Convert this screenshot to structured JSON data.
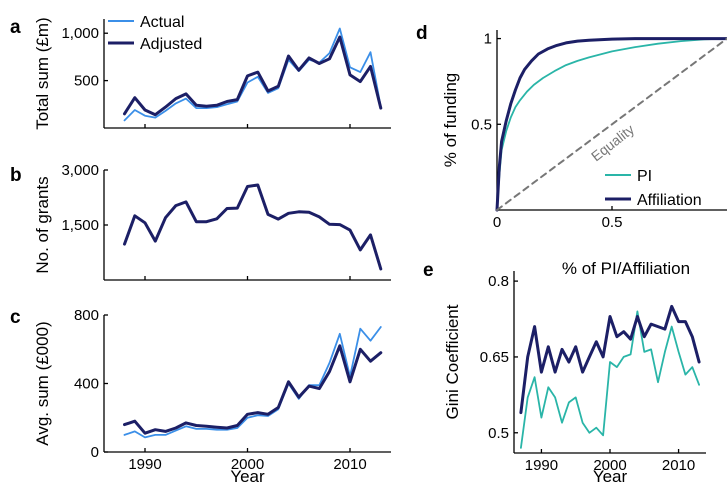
{
  "colors": {
    "actual": "#3b8fe8",
    "adjusted": "#1c1f66",
    "pi": "#2ab5a8",
    "affiliation": "#1c1f66",
    "equality": "#777777"
  },
  "panel_labels": {
    "a": "a",
    "b": "b",
    "c": "c",
    "d": "d",
    "e": "e"
  },
  "chart_data": [
    {
      "panel": "a",
      "type": "line",
      "xlabel": "",
      "ylabel": "Total sum (£m)",
      "xlim": [
        1986,
        2014
      ],
      "ylim": [
        0,
        1150
      ],
      "yticks": [
        500,
        1000
      ],
      "ytick_labels": [
        "500",
        "1,000"
      ],
      "legend": {
        "position": "top-left",
        "entries": [
          "Actual",
          "Adjusted"
        ]
      },
      "x": [
        1988,
        1989,
        1990,
        1991,
        1992,
        1993,
        1994,
        1995,
        1996,
        1997,
        1998,
        1999,
        2000,
        2001,
        2002,
        2003,
        2004,
        2005,
        2006,
        2007,
        2008,
        2009,
        2010,
        2011,
        2012,
        2013
      ],
      "series": [
        {
          "name": "Actual",
          "color_key": "actual",
          "values": [
            80,
            190,
            130,
            110,
            180,
            260,
            310,
            210,
            210,
            220,
            250,
            280,
            480,
            540,
            370,
            420,
            720,
            600,
            720,
            690,
            790,
            1050,
            640,
            590,
            800,
            220
          ]
        },
        {
          "name": "Adjusted",
          "color_key": "adjusted",
          "values": [
            150,
            320,
            190,
            140,
            220,
            310,
            360,
            240,
            230,
            240,
            280,
            300,
            550,
            590,
            390,
            440,
            760,
            610,
            740,
            680,
            730,
            960,
            560,
            490,
            650,
            210
          ]
        }
      ]
    },
    {
      "panel": "b",
      "type": "line",
      "xlabel": "",
      "ylabel": "No. of grants",
      "xlim": [
        1986,
        2014
      ],
      "ylim": [
        0,
        3000
      ],
      "yticks": [
        1500,
        3000
      ],
      "ytick_labels": [
        "1,500",
        "3,000"
      ],
      "x": [
        1988,
        1989,
        1990,
        1991,
        1992,
        1993,
        1994,
        1995,
        1996,
        1997,
        1998,
        1999,
        2000,
        2001,
        2002,
        2003,
        2004,
        2005,
        2006,
        2007,
        2008,
        2009,
        2010,
        2011,
        2012,
        2013
      ],
      "series": [
        {
          "color_key": "adjusted",
          "values": [
            980,
            1750,
            1560,
            1060,
            1700,
            2030,
            2130,
            1590,
            1590,
            1670,
            1950,
            1960,
            2550,
            2590,
            1790,
            1660,
            1820,
            1860,
            1850,
            1720,
            1520,
            1510,
            1360,
            820,
            1230,
            300
          ]
        }
      ]
    },
    {
      "panel": "c",
      "type": "line",
      "xlabel": "Year",
      "ylabel": "Avg. sum (£000)",
      "xlim": [
        1986,
        2014
      ],
      "ylim": [
        0,
        800
      ],
      "yticks": [
        0,
        400,
        800
      ],
      "ytick_labels": [
        "0",
        "400",
        "800"
      ],
      "xticks": [
        1990,
        2000,
        2010
      ],
      "xtick_labels": [
        "1990",
        "2000",
        "2010"
      ],
      "x": [
        1988,
        1989,
        1990,
        1991,
        1992,
        1993,
        1994,
        1995,
        1996,
        1997,
        1998,
        1999,
        2000,
        2001,
        2002,
        2003,
        2004,
        2005,
        2006,
        2007,
        2008,
        2009,
        2010,
        2011,
        2012,
        2013
      ],
      "series": [
        {
          "name": "Actual",
          "color_key": "actual",
          "values": [
            100,
            120,
            85,
            100,
            100,
            125,
            150,
            135,
            135,
            130,
            130,
            140,
            200,
            215,
            210,
            250,
            400,
            310,
            390,
            390,
            520,
            690,
            440,
            720,
            650,
            730
          ]
        },
        {
          "name": "Adjusted",
          "color_key": "adjusted",
          "values": [
            160,
            180,
            110,
            130,
            120,
            140,
            170,
            155,
            150,
            145,
            140,
            155,
            220,
            230,
            220,
            260,
            410,
            320,
            385,
            370,
            470,
            620,
            410,
            600,
            530,
            580
          ]
        }
      ]
    },
    {
      "panel": "d",
      "type": "line",
      "xlabel": "% of PI/Affiliation",
      "ylabel": "% of funding",
      "xlim": [
        0,
        1
      ],
      "ylim": [
        0,
        1.05
      ],
      "xticks": [
        0,
        0.5
      ],
      "xtick_labels": [
        "0",
        "0.5"
      ],
      "yticks": [
        0.5,
        1
      ],
      "ytick_labels": [
        "0.5",
        "1"
      ],
      "legend": {
        "position": "bottom-right",
        "entries": [
          "PI",
          "Affiliation"
        ]
      },
      "annotation": "Equality",
      "series": [
        {
          "name": "PI",
          "color_key": "pi",
          "x": [
            0,
            0.01,
            0.02,
            0.04,
            0.06,
            0.08,
            0.1,
            0.13,
            0.16,
            0.2,
            0.25,
            0.3,
            0.35,
            0.4,
            0.5,
            0.6,
            0.7,
            0.8,
            0.9,
            1.0
          ],
          "values": [
            0,
            0.2,
            0.35,
            0.46,
            0.54,
            0.6,
            0.64,
            0.69,
            0.73,
            0.77,
            0.81,
            0.845,
            0.87,
            0.89,
            0.925,
            0.95,
            0.97,
            0.985,
            0.995,
            1.0
          ]
        },
        {
          "name": "Affiliation",
          "color_key": "affiliation",
          "x": [
            0,
            0.01,
            0.02,
            0.04,
            0.06,
            0.08,
            0.1,
            0.12,
            0.15,
            0.18,
            0.22,
            0.26,
            0.3,
            0.35,
            0.4,
            0.5,
            0.6,
            0.8,
            1.0
          ],
          "values": [
            0,
            0.25,
            0.4,
            0.52,
            0.62,
            0.7,
            0.77,
            0.82,
            0.87,
            0.91,
            0.94,
            0.96,
            0.975,
            0.985,
            0.99,
            0.997,
            1.0,
            1.0,
            1.0
          ]
        },
        {
          "name": "Equality",
          "color_key": "equality",
          "dashed": true,
          "x": [
            0,
            1
          ],
          "values": [
            0,
            1
          ]
        }
      ]
    },
    {
      "panel": "e",
      "type": "line",
      "xlabel": "Year",
      "ylabel": "Gini Coefficient",
      "xlim": [
        1986,
        2014
      ],
      "ylim": [
        0.46,
        0.82
      ],
      "yticks": [
        0.5,
        0.65,
        0.8
      ],
      "ytick_labels": [
        "0.5",
        "0.65",
        "0.8"
      ],
      "xticks": [
        1990,
        2000,
        2010
      ],
      "xtick_labels": [
        "1990",
        "2000",
        "2010"
      ],
      "x": [
        1987,
        1988,
        1989,
        1990,
        1991,
        1992,
        1993,
        1994,
        1995,
        1996,
        1997,
        1998,
        1999,
        2000,
        2001,
        2002,
        2003,
        2004,
        2005,
        2006,
        2007,
        2008,
        2009,
        2010,
        2011,
        2012,
        2013
      ],
      "series": [
        {
          "name": "PI",
          "color_key": "pi",
          "values": [
            0.47,
            0.57,
            0.61,
            0.53,
            0.59,
            0.57,
            0.52,
            0.56,
            0.57,
            0.52,
            0.5,
            0.51,
            0.495,
            0.64,
            0.63,
            0.65,
            0.655,
            0.74,
            0.66,
            0.665,
            0.6,
            0.66,
            0.71,
            0.66,
            0.615,
            0.63,
            0.595
          ]
        },
        {
          "name": "Affiliation",
          "color_key": "affiliation",
          "values": [
            0.54,
            0.65,
            0.71,
            0.62,
            0.67,
            0.62,
            0.665,
            0.64,
            0.67,
            0.62,
            0.65,
            0.68,
            0.65,
            0.73,
            0.69,
            0.7,
            0.685,
            0.73,
            0.69,
            0.715,
            0.71,
            0.705,
            0.75,
            0.72,
            0.72,
            0.69,
            0.64
          ]
        }
      ]
    }
  ]
}
